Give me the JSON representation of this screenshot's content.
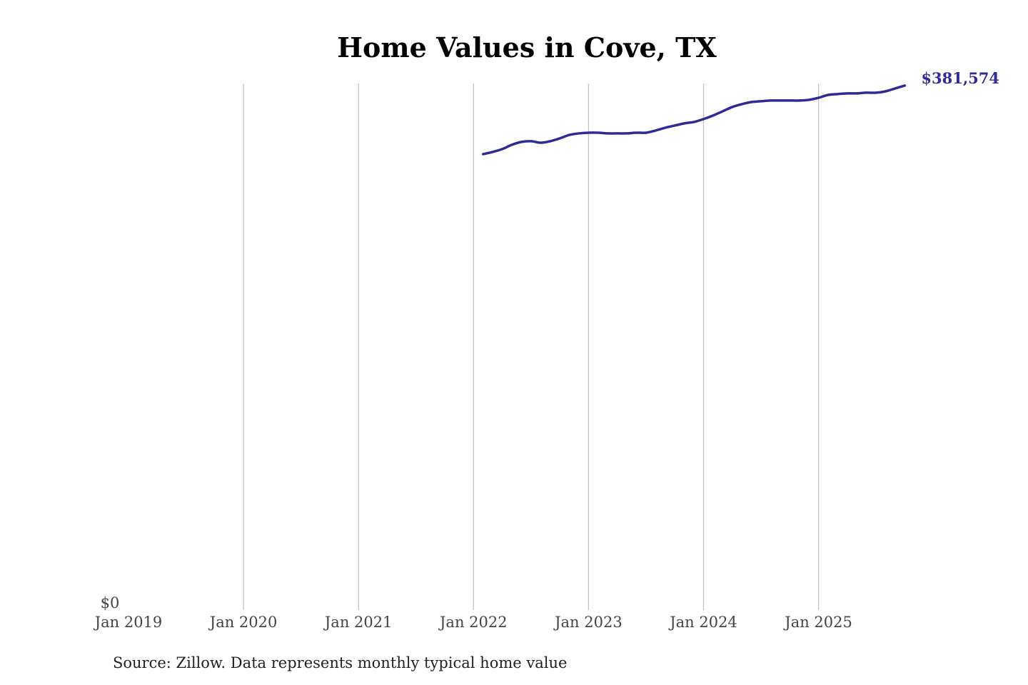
{
  "chart_data": {
    "type": "line",
    "title": "Home Values in Cove, TX",
    "xlabel": "",
    "ylabel": "",
    "source": "Source: Zillow. Data represents monthly typical home value",
    "x_ticks": [
      "Jan 2019",
      "Jan 2020",
      "Jan 2021",
      "Jan 2022",
      "Jan 2023",
      "Jan 2024",
      "Jan 2025"
    ],
    "y_ticks": [
      "$0"
    ],
    "xlim": [
      "2019-01",
      "2025-10"
    ],
    "ylim": [
      0,
      383100
    ],
    "grid": "vertical",
    "line_color": "#2e2a96",
    "end_label": "$381,574",
    "series": [
      {
        "x": [
          "2022-02",
          "2022-03",
          "2022-04",
          "2022-05",
          "2022-06",
          "2022-07",
          "2022-08",
          "2022-09",
          "2022-10",
          "2022-11",
          "2022-12",
          "2023-01",
          "2023-02",
          "2023-03",
          "2023-04",
          "2023-05",
          "2023-06",
          "2023-07",
          "2023-08",
          "2023-09",
          "2023-10",
          "2023-11",
          "2023-12",
          "2024-01",
          "2024-02",
          "2024-03",
          "2024-04",
          "2024-05",
          "2024-06",
          "2024-07",
          "2024-08",
          "2024-09",
          "2024-10",
          "2024-11",
          "2024-12",
          "2025-01",
          "2025-02",
          "2025-03",
          "2025-04",
          "2025-05",
          "2025-06",
          "2025-07",
          "2025-08",
          "2025-09",
          "2025-10"
        ],
        "values": [
          331700,
          333300,
          335400,
          338500,
          340600,
          341100,
          340000,
          341100,
          343200,
          345700,
          346800,
          347300,
          347300,
          346800,
          346800,
          346800,
          347300,
          347300,
          348900,
          350900,
          352500,
          354100,
          355100,
          357200,
          359800,
          362900,
          366000,
          368100,
          369600,
          370200,
          370700,
          370700,
          370700,
          370700,
          371200,
          372700,
          374800,
          375400,
          375900,
          375900,
          376400,
          376400,
          377400,
          379500,
          381574
        ]
      }
    ]
  }
}
